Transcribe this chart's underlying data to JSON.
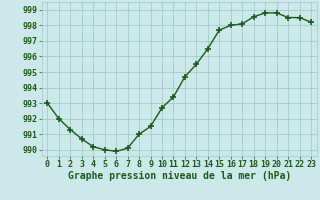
{
  "x": [
    0,
    1,
    2,
    3,
    4,
    5,
    6,
    7,
    8,
    9,
    10,
    11,
    12,
    13,
    14,
    15,
    16,
    17,
    18,
    19,
    20,
    21,
    22,
    23
  ],
  "y": [
    993.0,
    992.0,
    991.3,
    990.7,
    990.2,
    990.0,
    989.9,
    990.1,
    991.0,
    991.5,
    992.7,
    993.4,
    994.7,
    995.5,
    996.5,
    997.7,
    998.0,
    998.1,
    998.55,
    998.8,
    998.8,
    998.5,
    998.5,
    998.2
  ],
  "line_color": "#1a5c1a",
  "marker": "+",
  "marker_size": 4,
  "marker_linewidth": 1.2,
  "line_width": 1.0,
  "bg_color": "#cce8e8",
  "grid_color": "#a0cccc",
  "xlabel": "Graphe pression niveau de la mer (hPa)",
  "xlabel_fontsize": 7,
  "ylabel_ticks": [
    990,
    991,
    992,
    993,
    994,
    995,
    996,
    997,
    998,
    999
  ],
  "xlim": [
    -0.5,
    23.5
  ],
  "ylim": [
    989.6,
    999.5
  ],
  "tick_fontsize": 6,
  "label_color": "#1a5c1a"
}
